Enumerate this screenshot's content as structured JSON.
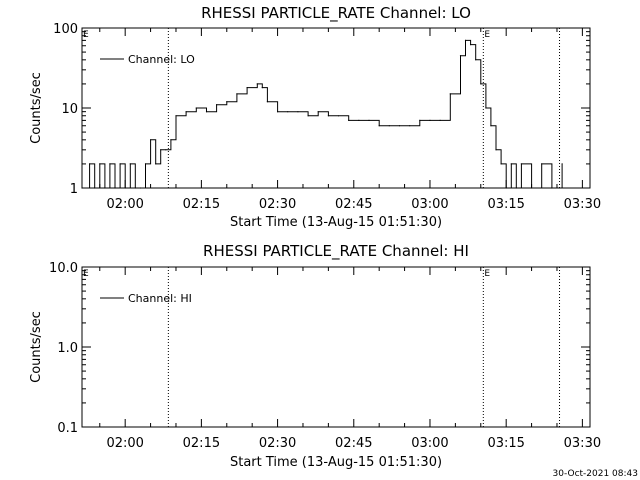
{
  "footer": {
    "timestamp": "30-Oct-2021 08:43"
  },
  "chart_data": [
    {
      "type": "line",
      "title": "RHESSI PARTICLE_RATE Channel: LO",
      "xlabel": "Start Time (13-Aug-15 01:51:30)",
      "ylabel": "Counts/sec",
      "yscale": "log",
      "ylim": [
        1,
        100
      ],
      "xlim_minutes_after_start": [
        0,
        100
      ],
      "ytick_labels": [
        "1",
        "10",
        "100"
      ],
      "xtick_labels": [
        "02:00",
        "02:15",
        "02:30",
        "02:45",
        "03:00",
        "03:15",
        "03:30"
      ],
      "legend": {
        "label": "Channel: LO",
        "position": "top-left"
      },
      "event_markers": {
        "label": "E",
        "times": [
          "02:08:30",
          "03:10:30",
          "03:25:30"
        ]
      },
      "series": [
        {
          "name": "Channel: LO",
          "x": [
            "01:51:30",
            "01:53",
            "01:54",
            "01:55",
            "01:56",
            "01:57",
            "01:58",
            "01:59",
            "02:00",
            "02:01",
            "02:02",
            "02:03",
            "02:04",
            "02:05",
            "02:06",
            "02:07",
            "02:08",
            "02:09",
            "02:10",
            "02:12",
            "02:14",
            "02:16",
            "02:18",
            "02:20",
            "02:22",
            "02:24",
            "02:26",
            "02:27",
            "02:28",
            "02:30",
            "02:32",
            "02:34",
            "02:36",
            "02:38",
            "02:40",
            "02:42",
            "02:44",
            "02:46",
            "02:48",
            "02:50",
            "02:52",
            "02:54",
            "02:56",
            "02:58",
            "03:00",
            "03:02",
            "03:04",
            "03:06",
            "03:07",
            "03:08",
            "03:09",
            "03:10",
            "03:11",
            "03:12",
            "03:13",
            "03:14",
            "03:15",
            "03:16",
            "03:17",
            "03:18",
            "03:20",
            "03:22",
            "03:24",
            "03:26"
          ],
          "y": [
            1,
            2,
            1,
            2,
            1,
            2,
            1,
            2,
            1,
            2,
            1,
            1,
            2,
            4,
            2,
            3,
            3,
            4,
            8,
            9,
            10,
            9,
            11,
            12,
            15,
            18,
            20,
            18,
            12,
            9,
            9,
            9,
            8,
            9,
            8,
            8,
            7,
            7,
            7,
            6,
            6,
            6,
            6,
            7,
            7,
            7,
            15,
            45,
            70,
            62,
            40,
            20,
            10,
            6,
            3,
            2,
            1,
            2,
            1,
            2,
            1,
            2,
            1,
            2
          ]
        }
      ]
    },
    {
      "type": "line",
      "title": "RHESSI PARTICLE_RATE Channel: HI",
      "xlabel": "Start Time (13-Aug-15 01:51:30)",
      "ylabel": "Counts/sec",
      "yscale": "log",
      "ylim": [
        0.1,
        10
      ],
      "xlim_minutes_after_start": [
        0,
        100
      ],
      "ytick_labels": [
        "0.1",
        "1.0",
        "10.0"
      ],
      "xtick_labels": [
        "02:00",
        "02:15",
        "02:30",
        "02:45",
        "03:00",
        "03:15",
        "03:30"
      ],
      "legend": {
        "label": "Channel: HI",
        "position": "top-left"
      },
      "event_markers": {
        "label": "E",
        "times": [
          "02:08:30",
          "03:10:30",
          "03:25:30"
        ]
      },
      "series": [
        {
          "name": "Channel: HI",
          "x": [],
          "y": []
        }
      ]
    }
  ]
}
